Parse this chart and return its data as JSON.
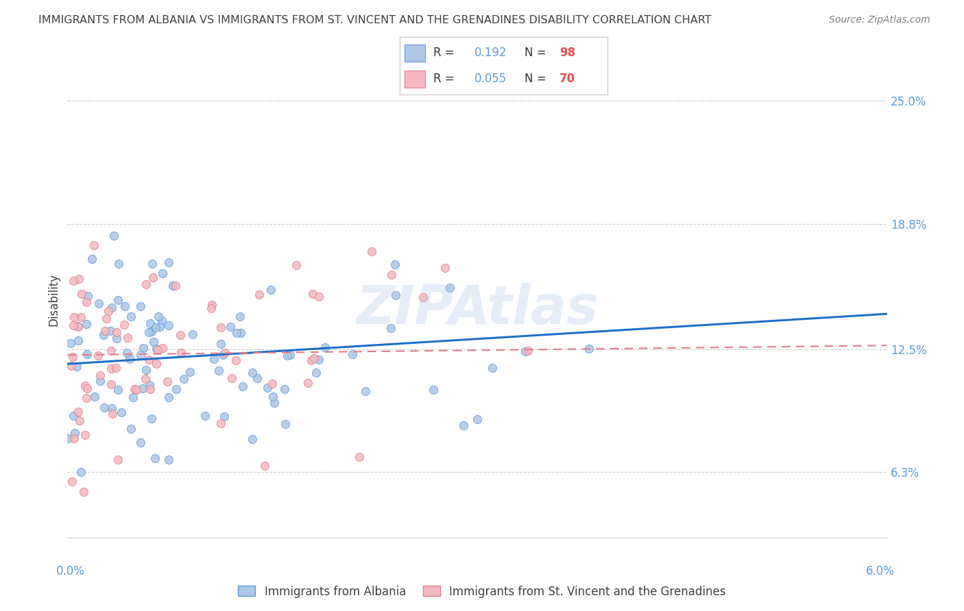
{
  "title": "IMMIGRANTS FROM ALBANIA VS IMMIGRANTS FROM ST. VINCENT AND THE GRENADINES DISABILITY CORRELATION CHART",
  "source": "Source: ZipAtlas.com",
  "ylabel": "Disability",
  "yticks": [
    "6.3%",
    "12.5%",
    "18.8%",
    "25.0%"
  ],
  "ytick_values": [
    0.063,
    0.125,
    0.188,
    0.25
  ],
  "xlim": [
    0.0,
    0.06
  ],
  "ylim": [
    0.03,
    0.27
  ],
  "scatter_albania": {
    "color": "#aec6e8",
    "edge_color": "#5b9bd5",
    "N": 98,
    "slope": 0.42,
    "intercept": 0.1175
  },
  "scatter_svg": {
    "color": "#f4b8c1",
    "edge_color": "#e07b8a",
    "N": 70,
    "slope": 0.08,
    "intercept": 0.122
  },
  "line_albania_color": "#1f6fc6",
  "line_svg_color": "#e07b8a",
  "watermark": "ZIPAtlas",
  "background_color": "#ffffff",
  "grid_color": "#cccccc",
  "axis_label_color": "#5b9bd5",
  "title_color": "#404040",
  "ylabel_color": "#404040",
  "legend_r1": "0.192",
  "legend_n1": "98",
  "legend_r2": "0.055",
  "legend_n2": "70",
  "alb_color": "#aec6e8",
  "alb_edge": "#5b9bd5",
  "svg_color": "#f4b8c1",
  "svg_edge": "#e07b8a",
  "bottom_legend": [
    "Immigrants from Albania",
    "Immigrants from St. Vincent and the Grenadines"
  ]
}
